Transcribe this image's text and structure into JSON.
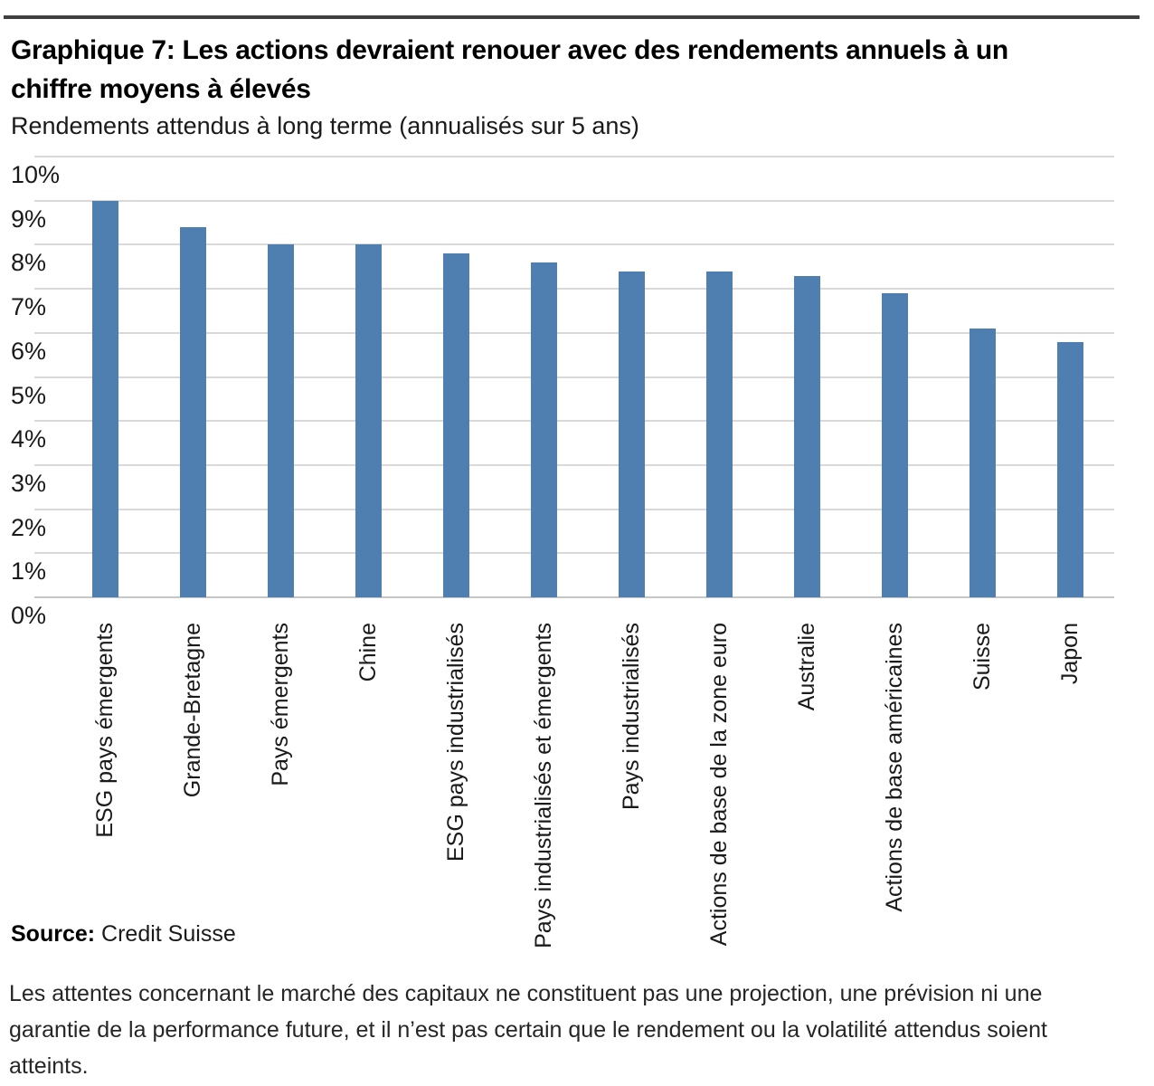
{
  "header": {
    "title_lines": [
      "Graphique 7: Les actions devraient renouer avec des rendements annuels à un",
      "chiffre moyens à élevés"
    ],
    "subtitle": "Rendements attendus à long terme (annualisés sur 5 ans)"
  },
  "chart_data": {
    "type": "bar",
    "title": "Graphique 7: Les actions devraient renouer avec des rendements annuels à un chiffre moyens à élevés",
    "subtitle": "Rendements attendus à long terme (annualisés sur 5 ans)",
    "categories": [
      "ESG pays émergents",
      "Grande-Bretagne",
      "Pays émergents",
      "Chine",
      "ESG pays industrialisés",
      "Pays industrialisés et émergents",
      "Pays industrialisés",
      "Actions de base de la zone euro",
      "Australie",
      "Actions de base américaines",
      "Suisse",
      "Japon"
    ],
    "values": [
      9.0,
      8.4,
      8.0,
      8.0,
      7.8,
      7.6,
      7.4,
      7.4,
      7.3,
      6.9,
      6.1,
      5.8
    ],
    "unit": "%",
    "xlabel": "",
    "ylabel": "",
    "ylim": [
      0,
      10
    ],
    "ytick_step": 1,
    "ytick_suffix": "%",
    "grid": "horizontal",
    "legend": "none",
    "bar_color": "#4e7fb0"
  },
  "source": {
    "label": "Source:",
    "value": "Credit Suisse"
  },
  "footnote": {
    "lines": [
      "Les attentes concernant le marché des capitaux ne constituent pas une projection, une prévision ni une",
      "garantie de la performance future, et il n’est pas certain que le rendement ou la volatilité attendus soient",
      "atteints."
    ]
  },
  "colors": {
    "bar": "#4e7fb0",
    "gridline": "#d9d9d9",
    "baseline": "#c6c6c6",
    "rule": "#404040"
  }
}
